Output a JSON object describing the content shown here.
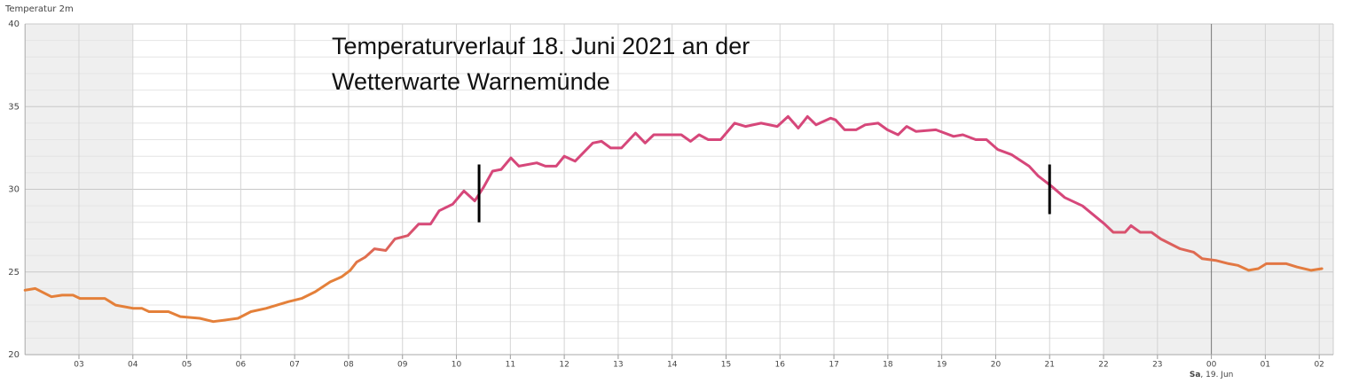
{
  "chart_data": {
    "type": "line",
    "title": "Temperatur 2m",
    "annotation": [
      "Temperaturverlauf 18. Juni 2021 an der",
      "Wetterwarte Warnemünde"
    ],
    "x": [
      2.0,
      2.19,
      2.49,
      2.69,
      2.89,
      3.02,
      3.48,
      3.68,
      4.01,
      4.17,
      4.3,
      4.66,
      4.88,
      5.24,
      5.49,
      5.73,
      5.95,
      6.19,
      6.47,
      6.88,
      7.13,
      7.38,
      7.66,
      7.87,
      8.03,
      8.15,
      8.31,
      8.48,
      8.69,
      8.86,
      9.1,
      9.3,
      9.52,
      9.68,
      9.93,
      10.14,
      10.34,
      10.5,
      10.67,
      10.83,
      11.01,
      11.16,
      11.49,
      11.65,
      11.85,
      12.0,
      12.2,
      12.53,
      12.69,
      12.86,
      13.06,
      13.32,
      13.5,
      13.66,
      14.17,
      14.34,
      14.5,
      14.67,
      14.9,
      15.16,
      15.36,
      15.65,
      15.95,
      16.15,
      16.34,
      16.51,
      16.67,
      16.94,
      17.03,
      17.2,
      17.41,
      17.58,
      17.82,
      17.99,
      18.19,
      18.35,
      18.52,
      18.89,
      19.22,
      19.39,
      19.63,
      19.83,
      20.04,
      20.29,
      20.62,
      20.79,
      21.03,
      21.28,
      21.61,
      22.02,
      22.18,
      22.4,
      22.51,
      22.68,
      22.89,
      23.06,
      23.42,
      23.67,
      23.83,
      24.08,
      24.32,
      24.49,
      24.69,
      24.87,
      25.02,
      25.39,
      25.59,
      25.85,
      26.05
    ],
    "series": [
      {
        "name": "Temperatur 2m",
        "values": [
          23.9,
          24.0,
          23.5,
          23.6,
          23.6,
          23.4,
          23.4,
          23.0,
          22.8,
          22.8,
          22.6,
          22.6,
          22.3,
          22.2,
          22.0,
          22.1,
          22.2,
          22.6,
          22.8,
          23.2,
          23.4,
          23.8,
          24.4,
          24.7,
          25.1,
          25.6,
          25.9,
          26.4,
          26.3,
          27.0,
          27.2,
          27.9,
          27.9,
          28.7,
          29.1,
          29.9,
          29.3,
          30.1,
          31.1,
          31.2,
          31.9,
          31.4,
          31.6,
          31.4,
          31.4,
          32.0,
          31.7,
          32.8,
          32.9,
          32.5,
          32.5,
          33.4,
          32.8,
          33.3,
          33.3,
          32.9,
          33.3,
          33.0,
          33.0,
          34.0,
          33.8,
          34.0,
          33.8,
          34.4,
          33.7,
          34.4,
          33.9,
          34.3,
          34.2,
          33.6,
          33.6,
          33.9,
          34.0,
          33.6,
          33.3,
          33.8,
          33.5,
          33.6,
          33.2,
          33.3,
          33.0,
          33.0,
          32.4,
          32.1,
          31.4,
          30.8,
          30.2,
          29.5,
          29.0,
          27.9,
          27.4,
          27.4,
          27.8,
          27.4,
          27.4,
          27.0,
          26.4,
          26.2,
          25.8,
          25.7,
          25.5,
          25.4,
          25.1,
          25.2,
          25.5,
          25.5,
          25.3,
          25.1,
          25.2
        ]
      }
    ],
    "color_scale": [
      {
        "value": 25,
        "color": "#e4803a"
      },
      {
        "value": 28,
        "color": "#d6477a"
      }
    ],
    "xlim": [
      2,
      26.26
    ],
    "xticks": [
      {
        "value": 3,
        "label": "03"
      },
      {
        "value": 4,
        "label": "04"
      },
      {
        "value": 5,
        "label": "05"
      },
      {
        "value": 6,
        "label": "06"
      },
      {
        "value": 7,
        "label": "07"
      },
      {
        "value": 8,
        "label": "08"
      },
      {
        "value": 9,
        "label": "09"
      },
      10,
      11,
      12,
      13,
      14,
      15,
      16,
      17,
      18,
      19,
      20,
      21,
      22,
      23,
      {
        "value": 24,
        "label": "00"
      },
      {
        "value": 25,
        "label": "01"
      },
      {
        "value": 26,
        "label": "02"
      }
    ],
    "ylim": [
      20,
      40
    ],
    "yticks": [
      20,
      25,
      30,
      35,
      40
    ],
    "y_minor_ticks": [
      21,
      22,
      23,
      24,
      26,
      27,
      28,
      29,
      31,
      32,
      33,
      34,
      36,
      37,
      38,
      39
    ],
    "grid": true,
    "night": [
      [
        2,
        4
      ],
      [
        22,
        26.26
      ]
    ],
    "day_boundary": 24,
    "date_label": {
      "value": 24,
      "parts": [
        "Sa",
        ", 19. Jun"
      ]
    },
    "markers": [
      {
        "x": 10.42,
        "y": [
          28.0,
          31.5
        ]
      },
      {
        "x": 21.0,
        "y": [
          28.5,
          31.5
        ]
      }
    ]
  }
}
